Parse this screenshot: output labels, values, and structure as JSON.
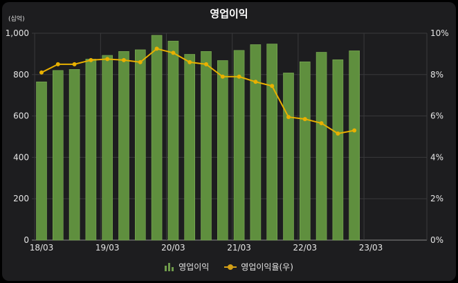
{
  "chart_data": {
    "type": "bar",
    "title": "영업이익",
    "unit_label": "(십억)",
    "categories": [
      "18/03",
      "18/06",
      "18/09",
      "18/12",
      "19/03",
      "19/06",
      "19/09",
      "19/12",
      "20/03",
      "20/06",
      "20/09",
      "20/12",
      "21/03",
      "21/06",
      "21/09",
      "21/12",
      "22/03",
      "22/06",
      "22/09",
      "22/12"
    ],
    "x_tick_labels": [
      "18/03",
      "19/03",
      "20/03",
      "21/03",
      "22/03",
      "23/03"
    ],
    "series": [
      {
        "name": "영업이익",
        "type": "bar",
        "axis": "left",
        "color": "#5f8f3e",
        "values": [
          765,
          820,
          825,
          875,
          893,
          912,
          920,
          990,
          962,
          898,
          912,
          868,
          917,
          945,
          948,
          808,
          862,
          908,
          872,
          915
        ]
      },
      {
        "name": "영업이익율(우)",
        "type": "line",
        "axis": "right",
        "color": "#e8b000",
        "values": [
          8.1,
          8.5,
          8.5,
          8.7,
          8.75,
          8.7,
          8.6,
          9.25,
          9.05,
          8.6,
          8.5,
          7.9,
          7.9,
          7.65,
          7.45,
          5.95,
          5.85,
          5.65,
          5.15,
          5.3
        ]
      }
    ],
    "ylim_left": [
      0,
      1000
    ],
    "yticks_left": [
      "0",
      "200",
      "400",
      "600",
      "800",
      "1,000"
    ],
    "ylim_right": [
      0,
      10
    ],
    "yticks_right": [
      "0%",
      "2%",
      "4%",
      "6%",
      "8%",
      "10%"
    ],
    "grid": true,
    "legend_position": "bottom-center"
  },
  "legend": {
    "bar_label": "영업이익",
    "line_label": "영업이익율(우)"
  }
}
